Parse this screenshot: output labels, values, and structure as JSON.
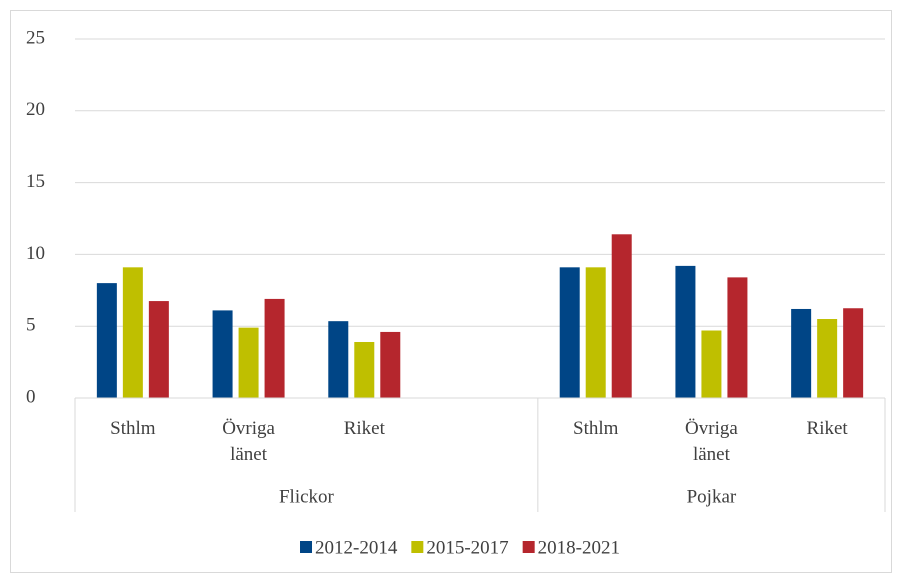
{
  "chart_data": {
    "type": "bar",
    "groups": [
      {
        "name": "Flickor",
        "categories": [
          "Sthlm",
          "Övriga länet",
          "Riket",
          null
        ]
      },
      {
        "name": "Pojkar",
        "categories": [
          "Sthlm",
          "Övriga länet",
          "Riket"
        ]
      }
    ],
    "series": [
      {
        "name": "2012-2014",
        "color": "#004586",
        "values": [
          8.0,
          6.1,
          5.35,
          null,
          9.1,
          9.2,
          6.2
        ]
      },
      {
        "name": "2015-2017",
        "color": "#bfbf00",
        "values": [
          9.1,
          4.9,
          3.9,
          null,
          9.1,
          4.7,
          5.5
        ]
      },
      {
        "name": "2018-2021",
        "color": "#b5262d",
        "values": [
          6.75,
          6.9,
          4.6,
          null,
          11.4,
          8.4,
          6.25
        ]
      }
    ],
    "ylim": [
      0,
      25
    ],
    "yticks": [
      0,
      5,
      10,
      15,
      20,
      25
    ],
    "grid": true,
    "legend": "bottom"
  }
}
